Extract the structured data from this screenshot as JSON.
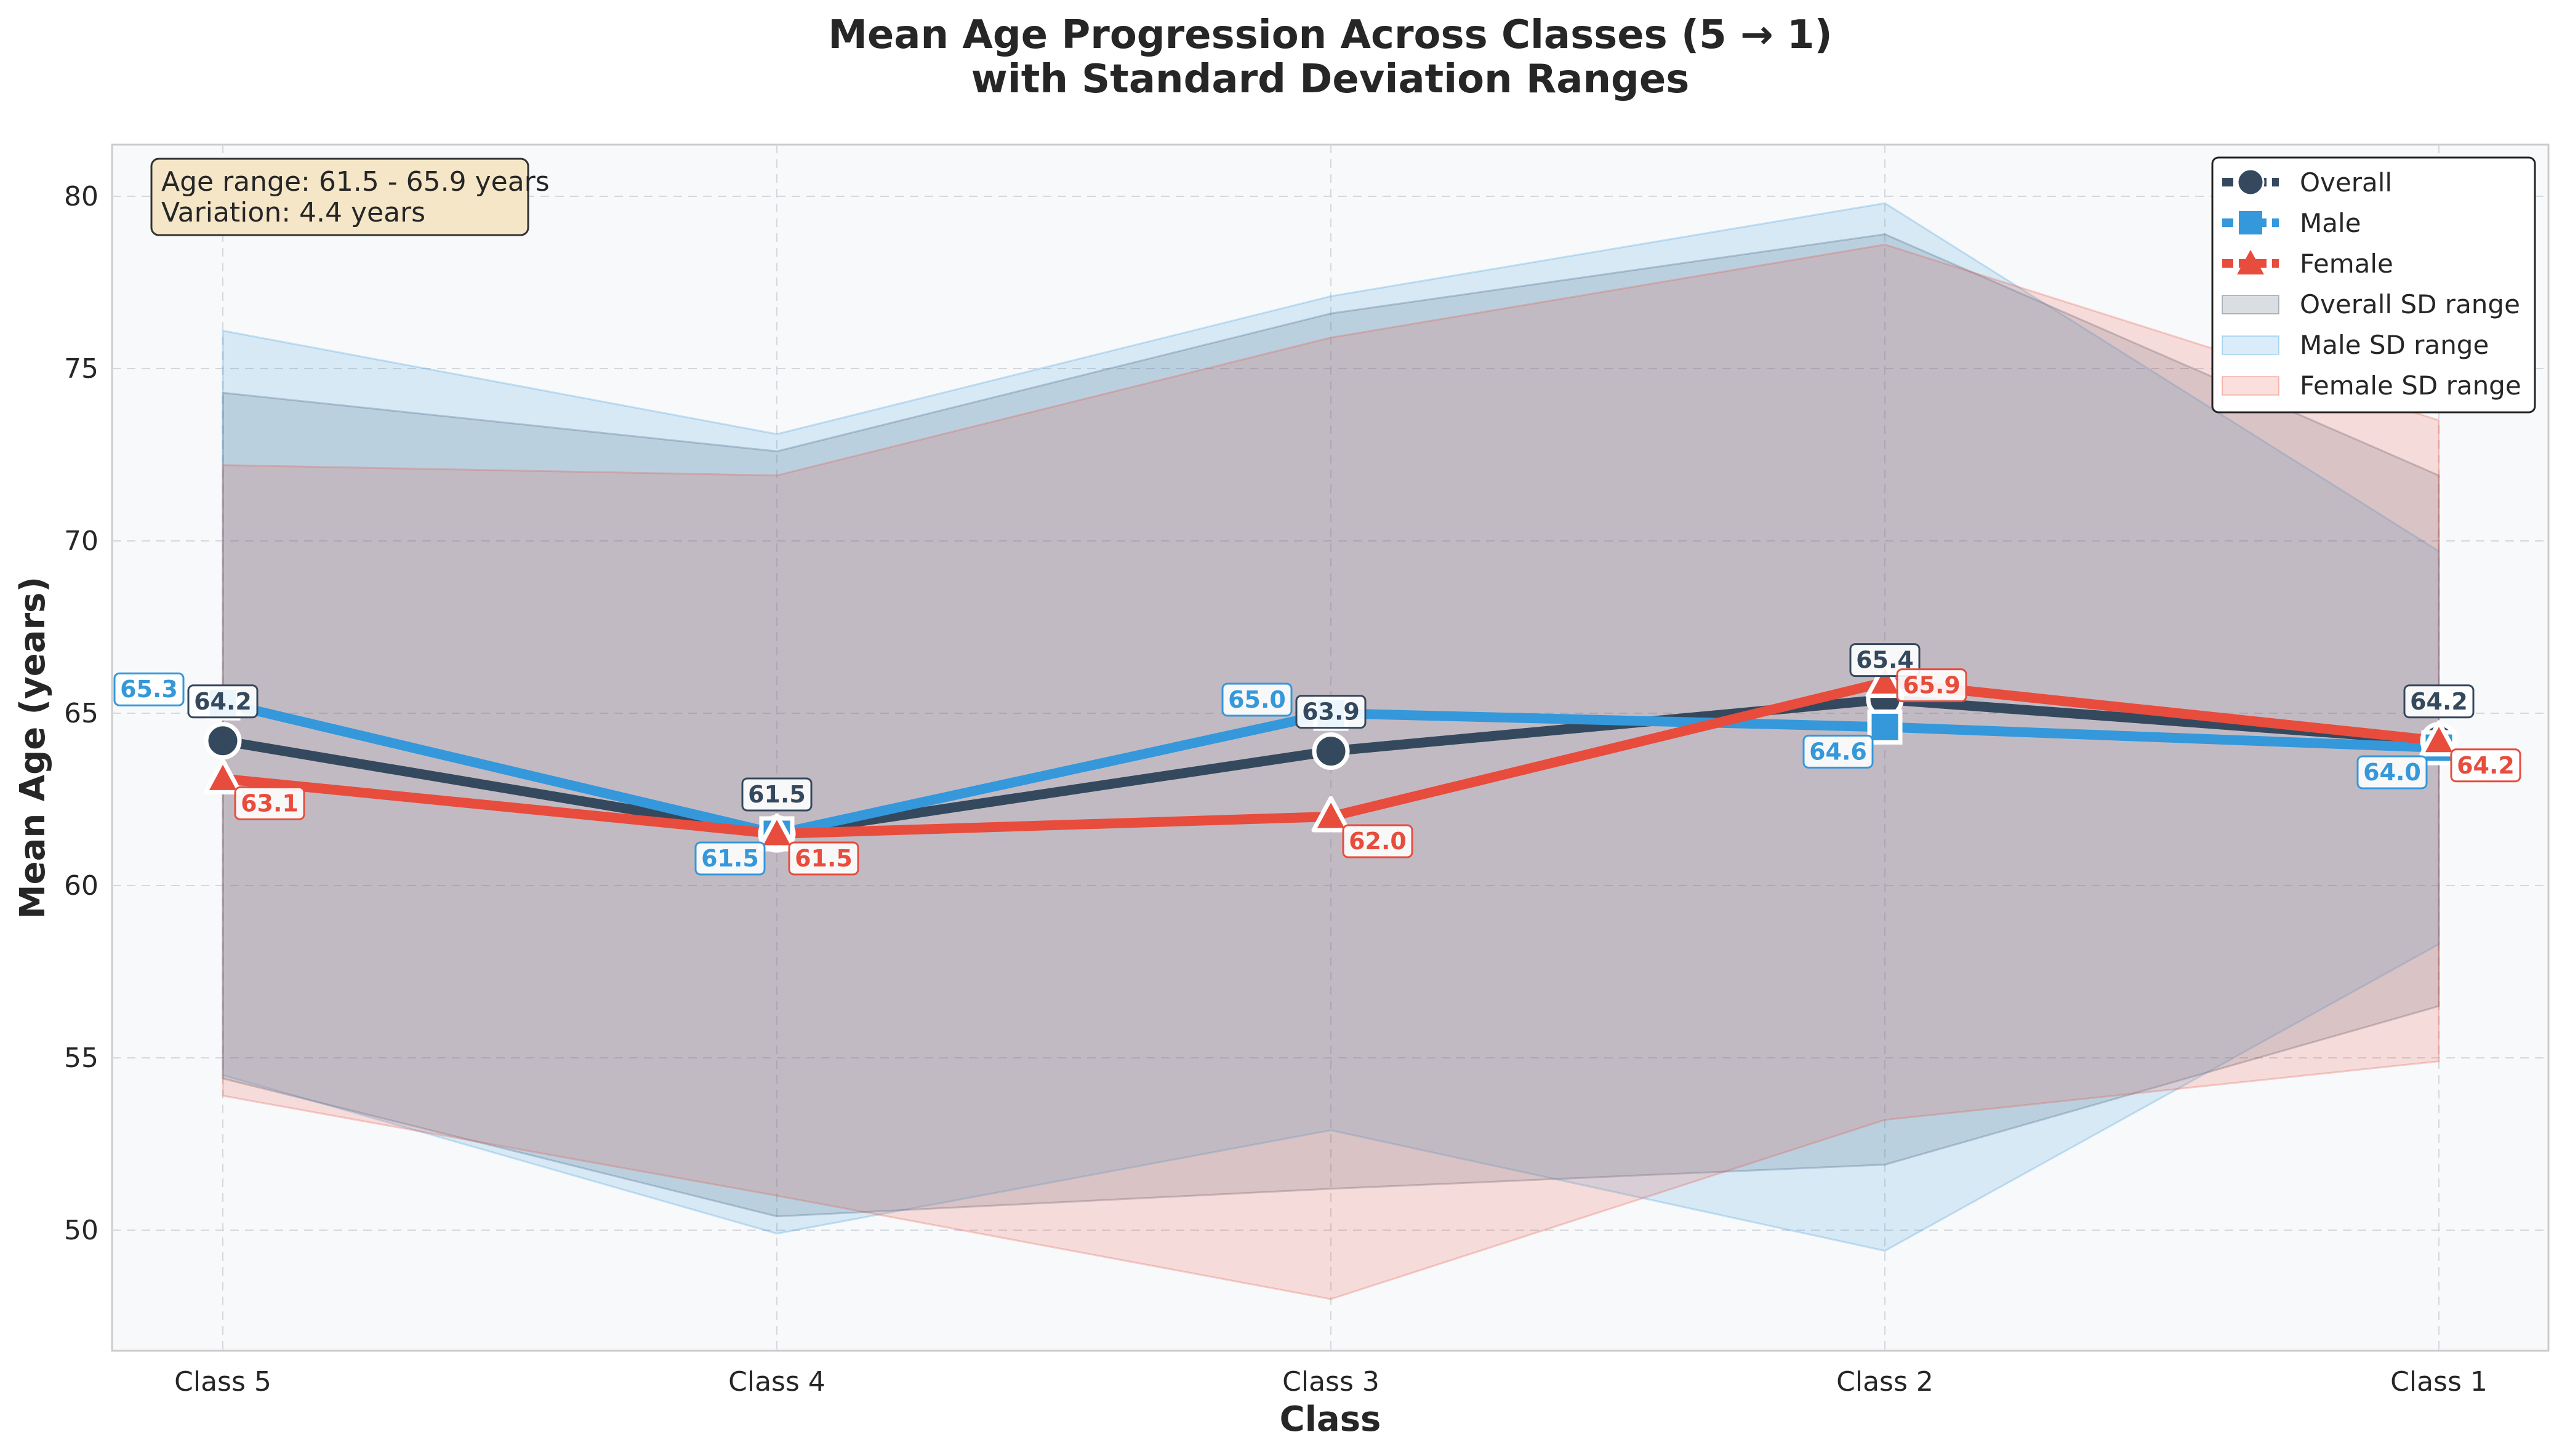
{
  "chart_data": {
    "type": "line",
    "title": "Mean Age Progression Across Classes (5 → 1)",
    "subtitle": "with Standard Deviation Ranges",
    "xlabel": "Class",
    "ylabel": "Mean Age (years)",
    "categories": [
      "Class 5",
      "Class 4",
      "Class 3",
      "Class 2",
      "Class 1"
    ],
    "ylim": [
      46.5,
      81.5
    ],
    "yticks": [
      50,
      55,
      60,
      65,
      70,
      75,
      80
    ],
    "grid": true,
    "legend_position": "top-right",
    "series": [
      {
        "name": "Overall",
        "marker": "circle",
        "color": "#34495e",
        "values": [
          64.2,
          61.5,
          63.9,
          65.4,
          64.2
        ],
        "labels": [
          "64.2",
          "61.5",
          "63.9",
          "65.4",
          "64.2"
        ],
        "sd_upper": [
          74.3,
          72.6,
          76.6,
          78.9,
          71.9
        ],
        "sd_lower": [
          54.4,
          50.4,
          51.2,
          51.9,
          56.5
        ]
      },
      {
        "name": "Male",
        "marker": "square",
        "color": "#3498db",
        "values": [
          65.3,
          61.5,
          65.0,
          64.6,
          64.0
        ],
        "labels": [
          "65.3",
          "61.5",
          "65.0",
          "64.6",
          "64.0"
        ],
        "sd_upper": [
          76.1,
          73.1,
          77.1,
          79.8,
          69.7
        ],
        "sd_lower": [
          54.5,
          49.9,
          52.9,
          49.4,
          58.3
        ]
      },
      {
        "name": "Female",
        "marker": "triangle",
        "color": "#e74c3c",
        "values": [
          63.1,
          61.5,
          62.0,
          65.9,
          64.2
        ],
        "labels": [
          "63.1",
          "61.5",
          "62.0",
          "65.9",
          "64.2"
        ],
        "sd_upper": [
          72.2,
          71.9,
          75.9,
          78.6,
          73.5
        ],
        "sd_lower": [
          53.9,
          51.0,
          48.0,
          53.2,
          54.9
        ]
      }
    ],
    "sd_range_labels": [
      "Overall SD range",
      "Male SD range",
      "Female SD range"
    ],
    "annotation": {
      "line1": "Age range: 61.5 - 65.9 years",
      "line2": "Variation: 4.4 years"
    }
  }
}
